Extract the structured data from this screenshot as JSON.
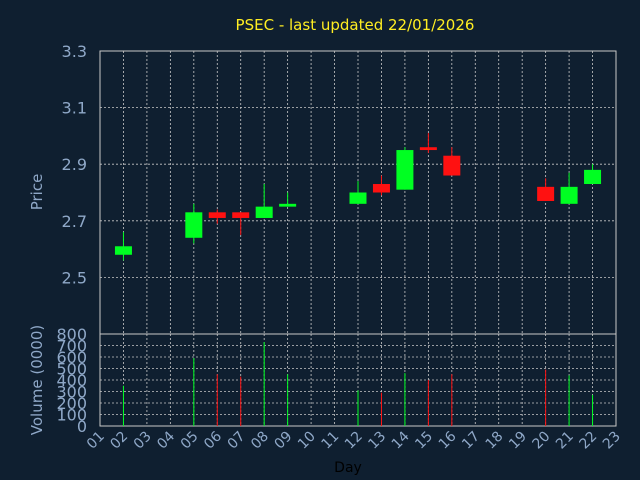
{
  "colors": {
    "background": "#0f1f30",
    "title": "#ffee22",
    "grid": "#c8c8c8",
    "axis_text": "#8fa8c8",
    "up": "#00ff22",
    "down": "#ff1111"
  },
  "chart_data": [
    {
      "type": "candlestick",
      "title": "PSEC - last updated 22/01/2026",
      "ylabel": "Price",
      "ylim": [
        2.3,
        3.3
      ],
      "yticks": [
        "2.5",
        "2.7",
        "2.9",
        "3.1",
        "3.3"
      ],
      "grid": true,
      "candles": [
        {
          "day": "02",
          "open": 2.58,
          "high": 2.66,
          "low": 2.56,
          "close": 2.61
        },
        {
          "day": "05",
          "open": 2.64,
          "high": 2.76,
          "low": 2.62,
          "close": 2.73
        },
        {
          "day": "06",
          "open": 2.73,
          "high": 2.74,
          "low": 2.69,
          "close": 2.71
        },
        {
          "day": "07",
          "open": 2.73,
          "high": 2.73,
          "low": 2.65,
          "close": 2.71
        },
        {
          "day": "08",
          "open": 2.71,
          "high": 2.83,
          "low": 2.71,
          "close": 2.75
        },
        {
          "day": "09",
          "open": 2.75,
          "high": 2.8,
          "low": 2.75,
          "close": 2.76
        },
        {
          "day": "12",
          "open": 2.76,
          "high": 2.84,
          "low": 2.76,
          "close": 2.8
        },
        {
          "day": "13",
          "open": 2.83,
          "high": 2.86,
          "low": 2.79,
          "close": 2.8
        },
        {
          "day": "14",
          "open": 2.81,
          "high": 2.96,
          "low": 2.81,
          "close": 2.95
        },
        {
          "day": "15",
          "open": 2.96,
          "high": 3.01,
          "low": 2.94,
          "close": 2.95
        },
        {
          "day": "16",
          "open": 2.93,
          "high": 2.96,
          "low": 2.86,
          "close": 2.86
        },
        {
          "day": "20",
          "open": 2.82,
          "high": 2.85,
          "low": 2.77,
          "close": 2.77
        },
        {
          "day": "21",
          "open": 2.76,
          "high": 2.87,
          "low": 2.76,
          "close": 2.82
        },
        {
          "day": "22",
          "open": 2.83,
          "high": 2.9,
          "low": 2.83,
          "close": 2.88
        }
      ]
    },
    {
      "type": "bar",
      "xlabel": "Day",
      "ylabel": "Volume (0000)",
      "ylim": [
        0,
        800
      ],
      "yticks": [
        "0",
        "100",
        "200",
        "300",
        "400",
        "500",
        "600",
        "700",
        "800"
      ],
      "xticks": [
        "01",
        "02",
        "03",
        "04",
        "05",
        "06",
        "07",
        "08",
        "09",
        "10",
        "11",
        "12",
        "13",
        "14",
        "15",
        "16",
        "17",
        "18",
        "19",
        "20",
        "21",
        "22",
        "23"
      ],
      "grid": true,
      "bars": [
        {
          "day": "02",
          "value": 350,
          "direction": "up"
        },
        {
          "day": "05",
          "value": 590,
          "direction": "up"
        },
        {
          "day": "06",
          "value": 450,
          "direction": "down"
        },
        {
          "day": "07",
          "value": 430,
          "direction": "down"
        },
        {
          "day": "08",
          "value": 730,
          "direction": "up"
        },
        {
          "day": "09",
          "value": 450,
          "direction": "up"
        },
        {
          "day": "12",
          "value": 310,
          "direction": "up"
        },
        {
          "day": "13",
          "value": 290,
          "direction": "down"
        },
        {
          "day": "14",
          "value": 460,
          "direction": "up"
        },
        {
          "day": "15",
          "value": 400,
          "direction": "down"
        },
        {
          "day": "16",
          "value": 450,
          "direction": "down"
        },
        {
          "day": "20",
          "value": 490,
          "direction": "down"
        },
        {
          "day": "21",
          "value": 440,
          "direction": "up"
        },
        {
          "day": "22",
          "value": 270,
          "direction": "up"
        }
      ]
    }
  ]
}
